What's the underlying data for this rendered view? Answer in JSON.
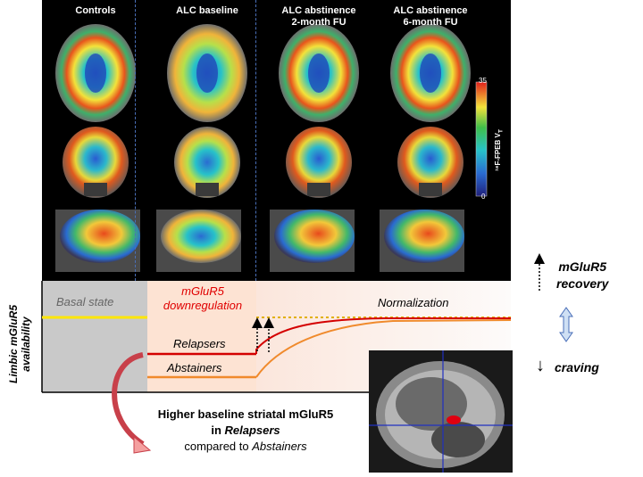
{
  "pet_columns": [
    {
      "title_line1": "Controls",
      "title_line2": ""
    },
    {
      "title_line1": "ALC baseline",
      "title_line2": ""
    },
    {
      "title_line1": "ALC abstinence",
      "title_line2": "2-month FU"
    },
    {
      "title_line1": "ALC abstinence",
      "title_line2": "6-month FU"
    }
  ],
  "colorbar": {
    "max_label": "35",
    "min_label": "0",
    "title": "¹⁸F-FPEB V",
    "title_sub": "T"
  },
  "timeline": {
    "y_axis_label_line1": "Limbic mGluR5",
    "y_axis_label_line2": "availability",
    "basal_state": "Basal state",
    "downregulation_line1": "mGluR5",
    "downregulation_line2": "downregulation",
    "normalization": "Normalization",
    "relapsers": "Relapsers",
    "abstainers": "Abstainers"
  },
  "caption": {
    "line1": "Higher baseline striatal mGluR5",
    "line2_prefix": "in ",
    "line2_emph": "Relapsers",
    "line3_prefix": "compared to ",
    "line3_emph": "Abstainers"
  },
  "right_panel": {
    "recovery_line1": "mGluR5",
    "recovery_line2": "recovery",
    "craving": "craving",
    "down_arrow": "↓"
  },
  "colors": {
    "relapsers": "#d40000",
    "abstainers": "#f08a2c",
    "basal": "#ffe600",
    "downregulation_text": "#e00000"
  }
}
